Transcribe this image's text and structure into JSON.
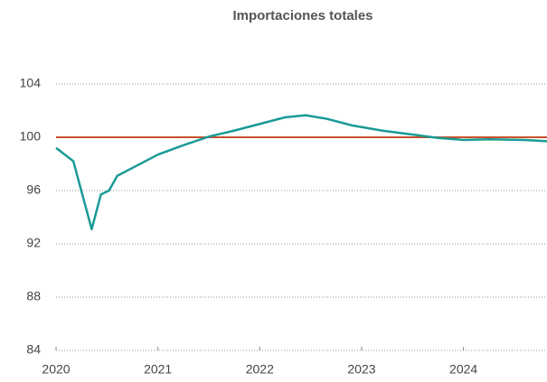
{
  "chart_data": {
    "type": "line",
    "title": "Importaciones totales",
    "x": [
      2020.0,
      2020.17,
      2020.35,
      2020.44,
      2020.52,
      2020.6,
      2020.75,
      2021.0,
      2021.25,
      2021.5,
      2021.75,
      2022.0,
      2022.25,
      2022.45,
      2022.65,
      2022.9,
      2023.2,
      2023.5,
      2023.75,
      2024.0,
      2024.25,
      2024.6,
      2024.82
    ],
    "series": [
      {
        "color": "#1a9a96",
        "values": [
          99.2,
          98.2,
          93.1,
          95.7,
          96.0,
          97.1,
          97.7,
          98.7,
          99.4,
          100.05,
          100.5,
          101.0,
          101.5,
          101.65,
          101.4,
          100.9,
          100.5,
          100.2,
          99.95,
          99.8,
          99.85,
          99.8,
          99.7
        ]
      }
    ],
    "reference_line": {
      "value": 100,
      "color": "#c8502a"
    },
    "xlim": [
      2020,
      2024.82
    ],
    "xticks": [
      2020,
      2021,
      2022,
      2023,
      2024
    ],
    "ylim": [
      84,
      104
    ],
    "yticks": [
      84,
      88,
      92,
      96,
      100,
      104
    ],
    "grid": true
  }
}
